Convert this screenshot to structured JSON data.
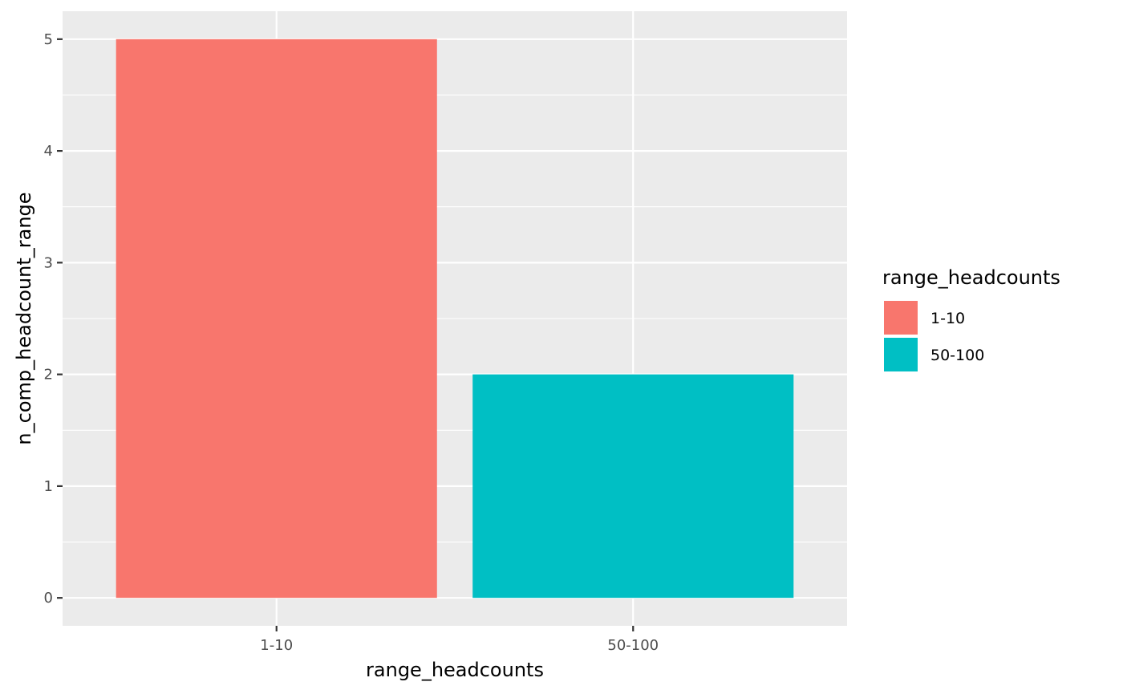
{
  "chart_data": {
    "type": "bar",
    "categories": [
      "1-10",
      "50-100"
    ],
    "values": [
      5,
      2
    ],
    "colors": [
      "#F8766D",
      "#00BFC4"
    ],
    "xlabel": "range_headcounts",
    "ylabel": "n_comp_headcount_range",
    "ylim": [
      -0.25,
      5.25
    ],
    "yticks": [
      0,
      1,
      2,
      3,
      4,
      5
    ],
    "grid": true,
    "panel_background": "#EBEBEB",
    "legend": {
      "title": "range_headcounts",
      "position": "right",
      "entries": [
        "1-10",
        "50-100"
      ]
    }
  }
}
